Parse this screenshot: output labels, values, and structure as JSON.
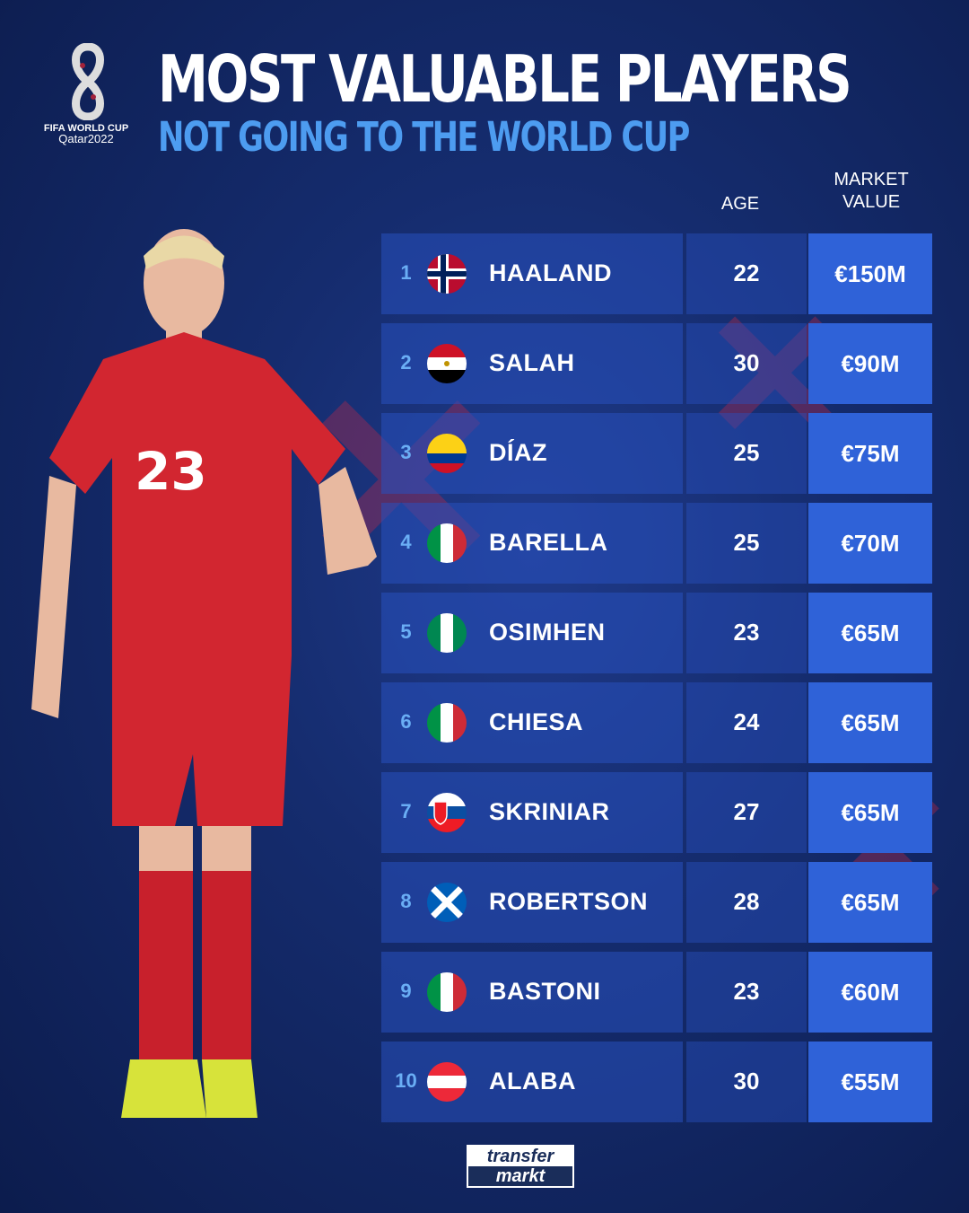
{
  "header": {
    "title": "MOST VALUABLE PLAYERS",
    "subtitle": "NOT GOING TO THE WORLD CUP"
  },
  "logo": {
    "line1": "FIFA WORLD CUP",
    "line2": "Qatar2022"
  },
  "columns": {
    "age": "AGE",
    "market_value_1": "MARKET",
    "market_value_2": "VALUE"
  },
  "players": [
    {
      "rank": "1",
      "name": "HAALAND",
      "country": "Norway",
      "age": "22",
      "value": "€150M"
    },
    {
      "rank": "2",
      "name": "SALAH",
      "country": "Egypt",
      "age": "30",
      "value": "€90M"
    },
    {
      "rank": "3",
      "name": "DÍAZ",
      "country": "Colombia",
      "age": "25",
      "value": "€75M"
    },
    {
      "rank": "4",
      "name": "BARELLA",
      "country": "Italy",
      "age": "25",
      "value": "€70M"
    },
    {
      "rank": "5",
      "name": "OSIMHEN",
      "country": "Nigeria",
      "age": "23",
      "value": "€65M"
    },
    {
      "rank": "6",
      "name": "CHIESA",
      "country": "Italy",
      "age": "24",
      "value": "€65M"
    },
    {
      "rank": "7",
      "name": "SKRINIAR",
      "country": "Slovakia",
      "age": "27",
      "value": "€65M"
    },
    {
      "rank": "8",
      "name": "ROBERTSON",
      "country": "Scotland",
      "age": "28",
      "value": "€65M"
    },
    {
      "rank": "9",
      "name": "BASTONI",
      "country": "Italy",
      "age": "23",
      "value": "€60M"
    },
    {
      "rank": "10",
      "name": "ALABA",
      "country": "Austria",
      "age": "30",
      "value": "€55M"
    }
  ],
  "player_photo": {
    "shirt_number": "23"
  },
  "footer": {
    "brand_1": "transfer",
    "brand_2": "markt"
  },
  "colors": {
    "accent": "#4d9cf0",
    "value_cell": "#2f62d8",
    "background": "#152c6e"
  }
}
